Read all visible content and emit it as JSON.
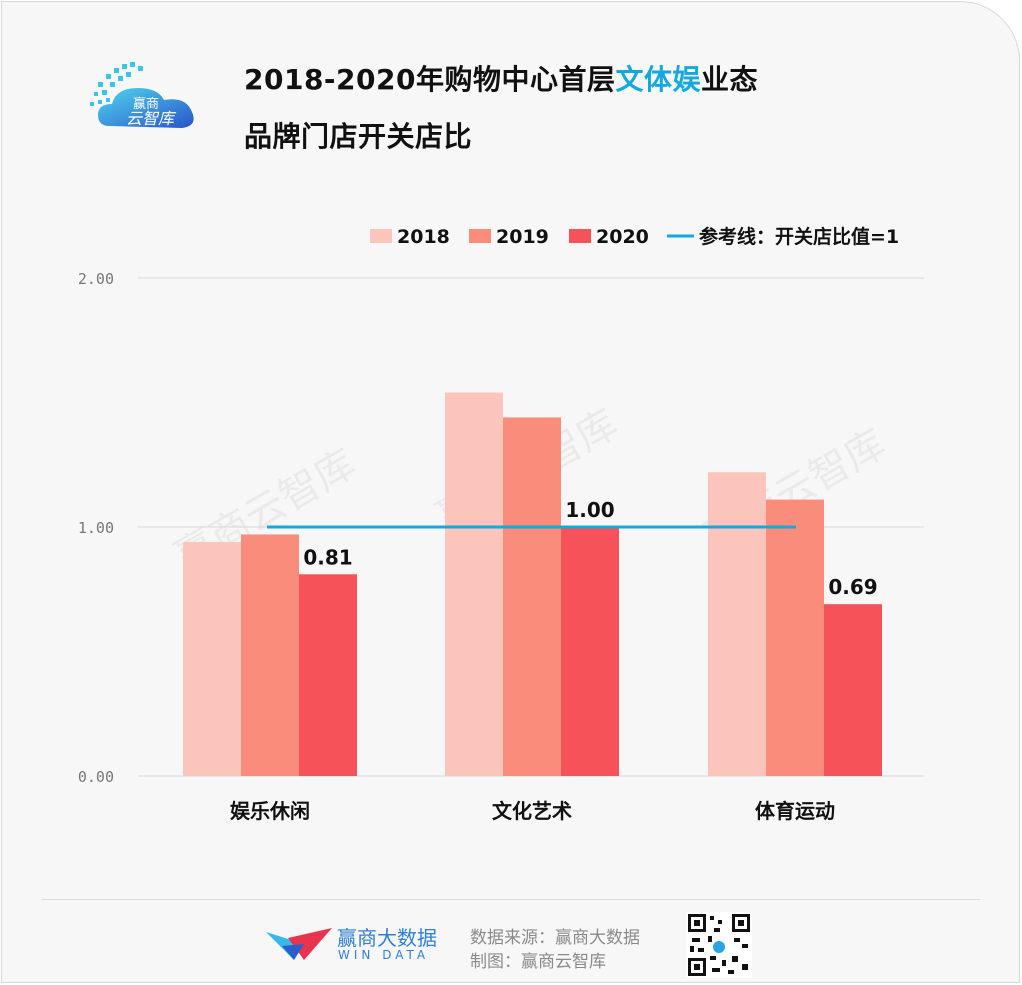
{
  "header": {
    "title_line1_pre": "2018-2020年购物中心首层",
    "title_line1_highlight": "文体娱",
    "title_line1_post": "业态",
    "title_line2": "品牌门店开关店比",
    "logo_text_line1": "赢商",
    "logo_text_line2": "云智库"
  },
  "chart_data": {
    "type": "bar",
    "title": "2018-2020年购物中心首层文体娱业态品牌门店开关店比",
    "categories": [
      "娱乐休闲",
      "文化艺术",
      "体育运动"
    ],
    "series": [
      {
        "name": "2018",
        "values": [
          0.94,
          1.54,
          1.22
        ],
        "color": "#fcc5bc"
      },
      {
        "name": "2019",
        "values": [
          0.97,
          1.44,
          1.11
        ],
        "color": "#fa8c7c"
      },
      {
        "name": "2020",
        "values": [
          0.81,
          1.0,
          0.69
        ],
        "color": "#f5525a"
      }
    ],
    "data_labels": [
      "0.81",
      "1.00",
      "0.69"
    ],
    "reference_line": {
      "label": "参考线：开关店比值=1",
      "value": 1,
      "color": "#14a7e2"
    },
    "y_ticks": [
      "0.00",
      "1.00",
      "2.00"
    ],
    "ylim": [
      0,
      2
    ],
    "grid": true,
    "legend_position": "top-right",
    "xlabel": "",
    "ylabel": ""
  },
  "watermark": "赢商云智库",
  "footer": {
    "brand_name": "赢商大数据",
    "brand_en": "WIN DATA",
    "source": "数据来源：赢商大数据",
    "made_by": "制图：赢商云智库",
    "brand_color": "#2f7fd6"
  }
}
